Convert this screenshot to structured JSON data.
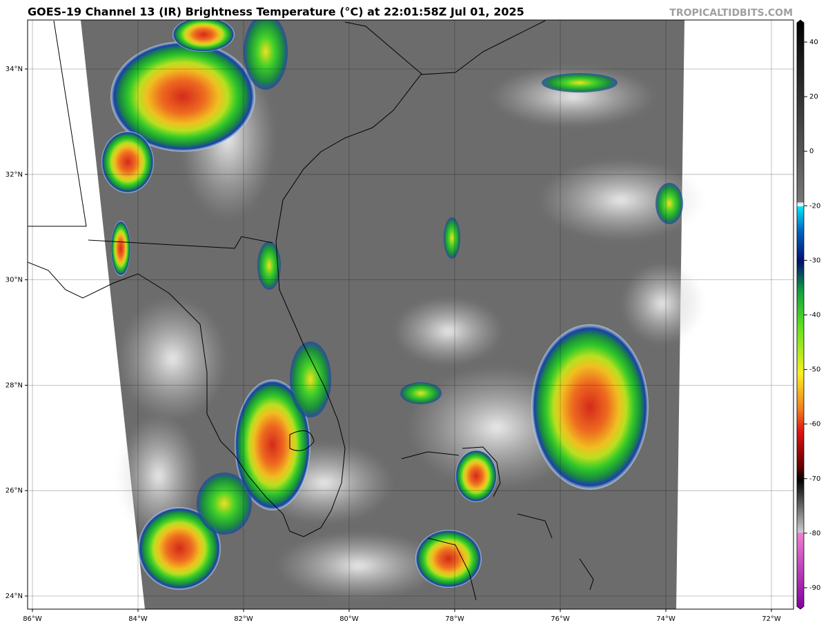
{
  "header": {
    "title": "GOES-19 Channel 13 (IR) Brightness Temperature (°C) at 22:01:58Z Jul 01, 2025",
    "watermark": "TROPICALTIDBITS.COM"
  },
  "map": {
    "lat_labels": [
      "34°N",
      "32°N",
      "30°N",
      "28°N",
      "26°N",
      "24°N"
    ],
    "lon_labels": [
      "86°W",
      "84°W",
      "82°W",
      "80°W",
      "78°W",
      "76°W",
      "74°W",
      "72°W"
    ]
  },
  "colorbar": {
    "ticks": [
      40,
      20,
      0,
      -20,
      -30,
      -40,
      -50,
      -60,
      -70,
      -80,
      -90
    ]
  }
}
